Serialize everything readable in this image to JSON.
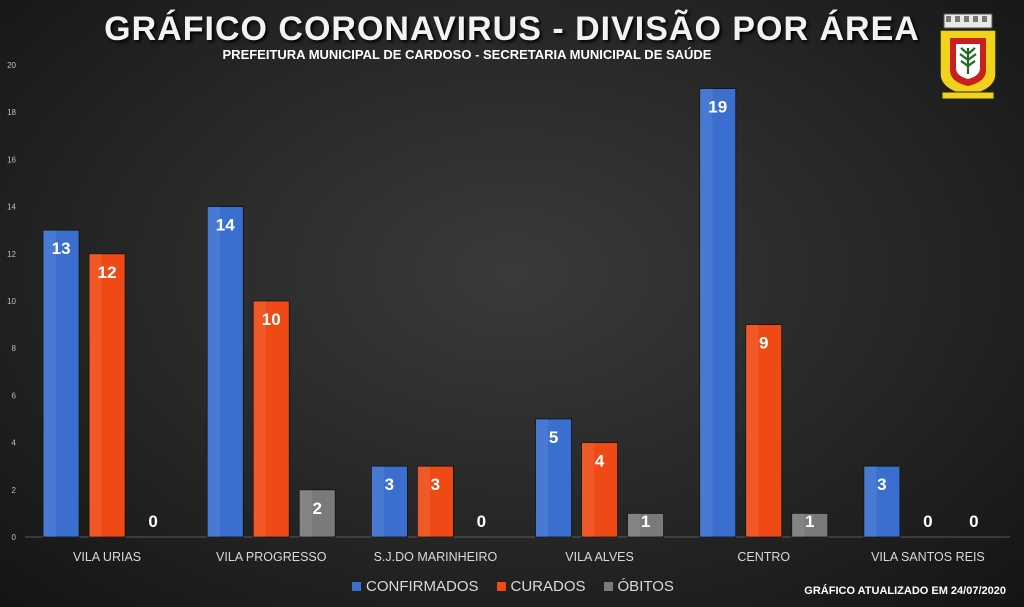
{
  "title": "GRÁFICO CORONAVIRUS - DIVISÃO POR ÁREA",
  "subtitle": "PREFEITURA MUNICIPAL DE CARDOSO - SECRETARIA MUNICIPAL DE SAÚDE",
  "footnote": "GRÁFICO ATUALIZADO EM 24/07/2020",
  "legend": [
    {
      "label": "CONFIRMADOS",
      "color": "#3a6fd0"
    },
    {
      "label": "CURADOS",
      "color": "#ef4a15"
    },
    {
      "label": "ÓBITOS",
      "color": "#7a7a7a"
    }
  ],
  "chart_data": {
    "type": "bar",
    "categories": [
      "VILA URIAS",
      "VILA PROGRESSO",
      "S.J.DO MARINHEIRO",
      "VILA ALVES",
      "CENTRO",
      "VILA SANTOS REIS"
    ],
    "series": [
      {
        "name": "CONFIRMADOS",
        "values": [
          13,
          14,
          3,
          5,
          19,
          3
        ],
        "color": "#3a6fd0"
      },
      {
        "name": "CURADOS",
        "values": [
          12,
          10,
          3,
          4,
          9,
          0
        ],
        "color": "#ef4a15"
      },
      {
        "name": "ÓBITOS",
        "values": [
          0,
          2,
          0,
          1,
          1,
          0
        ],
        "color": "#7a7a7a"
      }
    ],
    "ylim": [
      0,
      20
    ],
    "yticks": [
      0,
      2,
      4,
      6,
      8,
      10,
      12,
      14,
      16,
      18,
      20
    ],
    "grid": false,
    "legend_position": "bottom"
  },
  "logo": {
    "icon": "city-coat-of-arms-icon",
    "primary": "#f2d31b",
    "secondary": "#c8201e"
  }
}
